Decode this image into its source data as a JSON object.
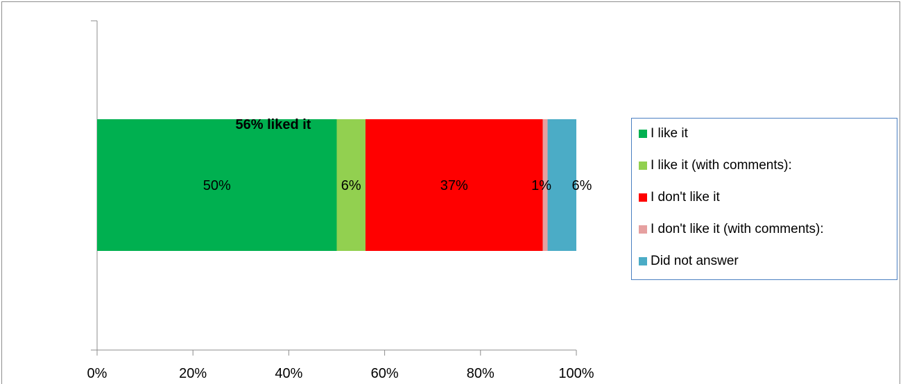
{
  "chart_data": {
    "type": "bar",
    "orientation": "horizontal",
    "stacked": true,
    "annotation": "56% liked it",
    "xlim": [
      0,
      100
    ],
    "x_ticks": [
      "0%",
      "20%",
      "40%",
      "60%",
      "80%",
      "100%"
    ],
    "x_tick_values": [
      0,
      20,
      40,
      60,
      80,
      100
    ],
    "grid": false,
    "legend_position": "right",
    "series": [
      {
        "name": "I like it",
        "value": 50,
        "label": "50%",
        "color": "#00b050"
      },
      {
        "name": "I like it (with comments):",
        "value": 6,
        "label": "6%",
        "color": "#92d050"
      },
      {
        "name": "I don't like it",
        "value": 37,
        "label": "37%",
        "color": "#ff0000"
      },
      {
        "name": "I don't like it (with comments):",
        "value": 1,
        "label": "1%",
        "color": "#e6a0a0"
      },
      {
        "name": "Did not answer",
        "value": 6,
        "label": "6%",
        "color": "#4bacc6"
      }
    ]
  }
}
